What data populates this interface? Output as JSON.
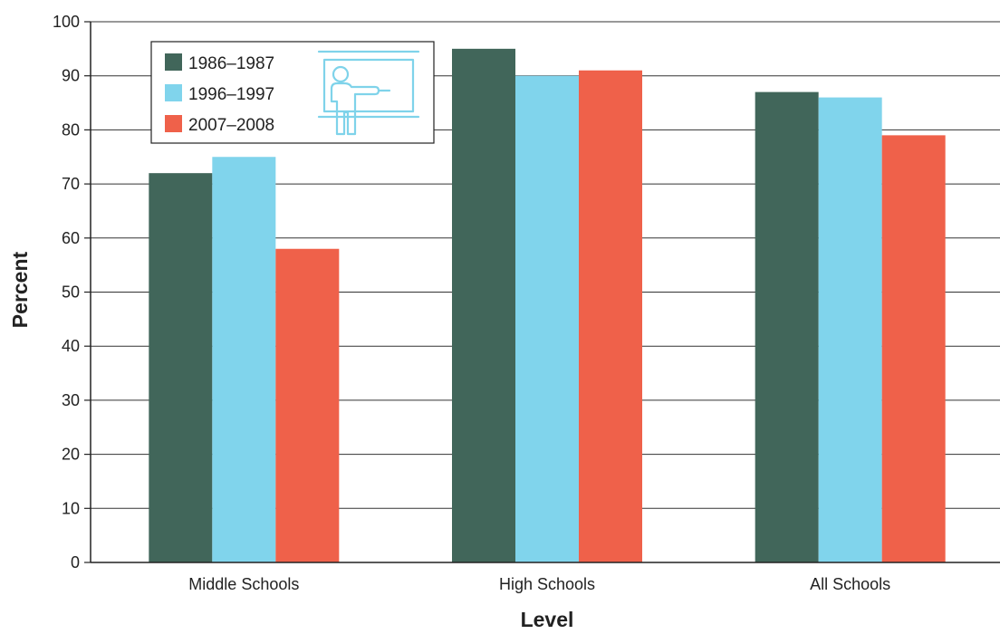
{
  "chart_data": {
    "type": "bar",
    "categories": [
      "Middle Schools",
      "High Schools",
      "All Schools"
    ],
    "series": [
      {
        "name": "1986–1987",
        "color": "#41665a",
        "values": [
          72,
          95,
          87
        ]
      },
      {
        "name": "1996–1997",
        "color": "#80d4ec",
        "values": [
          75,
          90,
          86
        ]
      },
      {
        "name": "2007–2008",
        "color": "#ef614a",
        "values": [
          58,
          91,
          79
        ]
      }
    ],
    "xlabel": "Level",
    "ylabel": "Percent",
    "ylim": [
      0,
      100
    ],
    "yticks": [
      0,
      10,
      20,
      30,
      40,
      50,
      60,
      70,
      80,
      90,
      100
    ],
    "grid": true,
    "legend_position": "top-left",
    "legend_icon": "teacher-at-board-icon",
    "icon_color": "#7fd3ea"
  }
}
